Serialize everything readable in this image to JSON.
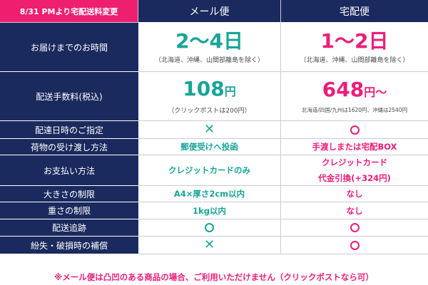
{
  "header": {
    "corner": "8/31 PMより宅配送料変更",
    "col_mail": "メール便",
    "col_takuhai": "宅配便"
  },
  "rows": {
    "delivery_time": {
      "label": "お届けまでのお時間",
      "mail_value": "2〜4日",
      "mail_note": "（北海道、沖縄、山間部離島を除く）",
      "takuhai_value": "1〜2日",
      "takuhai_note": "（北海道、沖縄、山間部離島を除く）"
    },
    "fee": {
      "label": "配送手数料(税込)",
      "mail_value": "108",
      "mail_unit": "円",
      "mail_note": "（クリックポストは200円）",
      "takuhai_value": "648",
      "takuhai_unit": "円〜",
      "takuhai_note": "北海道/四国/九州は1620円、沖縄は2540円"
    },
    "date_spec": {
      "label": "配達日時のご指定",
      "mail_mark": "✕",
      "takuhai_mark": "○"
    },
    "handover": {
      "label": "荷物の受け渡し方法",
      "mail_value": "郵便受けへ投函",
      "takuhai_value": "手渡しまたは宅配BOX"
    },
    "payment": {
      "label": "お支払い方法",
      "mail_value": "クレジットカードのみ",
      "takuhai_value_1": "クレジットカード",
      "takuhai_value_2": "代金引換(+324円)"
    },
    "size_limit": {
      "label": "大きさの制限",
      "mail_value": "A4×厚さ2cm以内",
      "takuhai_value": "なし"
    },
    "weight_limit": {
      "label": "重さの制限",
      "mail_value": "1kg以内",
      "takuhai_value": "なし"
    },
    "tracking": {
      "label": "配送追跡",
      "mail_mark": "○",
      "takuhai_mark": "○"
    },
    "compensation": {
      "label": "紛失・破損時の補償",
      "mail_mark": "✕",
      "takuhai_mark": "○"
    }
  },
  "footnote": "※メール便は凸凹のある商品の場合、ご利用いただけません（クリックポストなら可）",
  "colors": {
    "navy": "#1b2a5e",
    "pink": "#ec1d7a",
    "teal": "#17a596",
    "corner": "#ef1f6f"
  }
}
